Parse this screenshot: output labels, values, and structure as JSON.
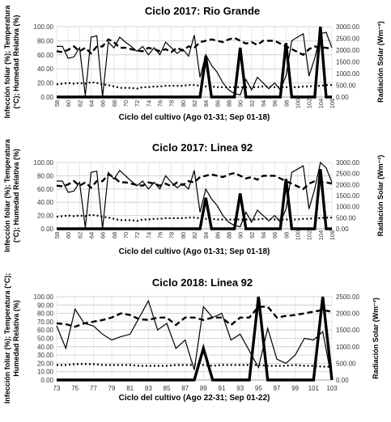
{
  "chart_data": [
    {
      "type": "line",
      "title": "Ciclo 2017: Rio Grande",
      "xlabel": "Ciclo del cultivo (Ago 01-31; Sep 01-18)",
      "ylabel_lines": [
        "Infección foliar (%); Temperatura",
        "(°C); Humedad Relativa (%)"
      ],
      "y2label": "Radiación Solar (Wm⁻²)",
      "xlim": [
        58,
        106
      ],
      "xticks": [
        58,
        60,
        62,
        64,
        66,
        68,
        70,
        72,
        74,
        76,
        78,
        80,
        82,
        84,
        86,
        88,
        90,
        92,
        94,
        96,
        98,
        100,
        102,
        104,
        106
      ],
      "yticks": [
        "0.00",
        "20.00",
        "40.00",
        "60.00",
        "80.00",
        "100.00"
      ],
      "y2ticks": [
        "0.00",
        "500.00",
        "1000.00",
        "1500.00",
        "2000.00",
        "2500.00",
        "3000.00"
      ],
      "ylim": [
        0,
        100
      ],
      "y2lim": [
        0,
        3000
      ],
      "grid": true,
      "x": [
        58,
        59,
        60,
        61,
        62,
        63,
        64,
        65,
        66,
        67,
        68,
        69,
        70,
        71,
        72,
        73,
        74,
        75,
        76,
        77,
        78,
        79,
        80,
        81,
        82,
        83,
        84,
        85,
        86,
        87,
        88,
        89,
        90,
        91,
        92,
        93,
        94,
        95,
        96,
        97,
        98,
        99,
        100,
        101,
        102,
        103,
        104,
        105,
        106
      ],
      "series": [
        {
          "style": "thin-solid",
          "axis": "left",
          "values": [
            72,
            72,
            55,
            57,
            70,
            2,
            85,
            87,
            0,
            78,
            70,
            85,
            78,
            72,
            65,
            72,
            60,
            70,
            60,
            78,
            70,
            62,
            68,
            58,
            88,
            28,
            60,
            45,
            35,
            20,
            10,
            5,
            3,
            25,
            10,
            28,
            20,
            12,
            20,
            10,
            30,
            80,
            85,
            90,
            30,
            55,
            90,
            92,
            70
          ]
        },
        {
          "style": "dashed",
          "axis": "left",
          "values": [
            65,
            64,
            67,
            72,
            65,
            70,
            62,
            72,
            72,
            82,
            78,
            70,
            70,
            68,
            66,
            65,
            70,
            68,
            65,
            68,
            64,
            70,
            66,
            72,
            70,
            78,
            80,
            82,
            80,
            78,
            82,
            84,
            80,
            76,
            78,
            74,
            80,
            80,
            80,
            76,
            72,
            68,
            64,
            60,
            68,
            72,
            70,
            70,
            68
          ]
        },
        {
          "style": "dotted",
          "axis": "left",
          "values": [
            18,
            19,
            20,
            19,
            20,
            19,
            21,
            20,
            18,
            17,
            15,
            13,
            13,
            13,
            12,
            14,
            14,
            15,
            15,
            16,
            16,
            16,
            16,
            17,
            17,
            16,
            15,
            15,
            14,
            14,
            14,
            14,
            14,
            14,
            14,
            14,
            15,
            15,
            14,
            14,
            14,
            14,
            14,
            15,
            15,
            16,
            16,
            17,
            17
          ]
        },
        {
          "style": "thick-solid",
          "axis": "right",
          "values": [
            0,
            0,
            0,
            0,
            0,
            0,
            0,
            0,
            0,
            0,
            0,
            0,
            0,
            0,
            0,
            0,
            0,
            0,
            0,
            0,
            0,
            0,
            0,
            0,
            0,
            0,
            1750,
            0,
            0,
            0,
            0,
            0,
            2100,
            0,
            0,
            0,
            0,
            0,
            0,
            0,
            2300,
            0,
            0,
            0,
            0,
            0,
            3000,
            0,
            0
          ]
        }
      ]
    },
    {
      "type": "line",
      "title": "Ciclo 2017: Linea 92",
      "xlabel": "Ciclo del cultivo (Ago 01-31; Sep 01-18)",
      "ylabel_lines": [
        "Infección foliar (%); Temperatura",
        "(°C); Humedad Relativa (%)"
      ],
      "y2label": "Radiación Solar (Wm⁻²)",
      "xlim": [
        58,
        106
      ],
      "xticks": [
        58,
        60,
        62,
        64,
        66,
        68,
        70,
        72,
        74,
        76,
        78,
        80,
        82,
        84,
        86,
        88,
        90,
        92,
        94,
        96,
        98,
        100,
        102,
        104,
        106
      ],
      "yticks": [
        "0.00",
        "20.00",
        "40.00",
        "60.00",
        "80.00",
        "100.00"
      ],
      "y2ticks": [
        "0.00",
        "500.00",
        "1000.00",
        "1500.00",
        "2000.00",
        "2500.00",
        "3000.00"
      ],
      "ylim": [
        0,
        100
      ],
      "y2lim": [
        0,
        3000
      ],
      "grid": true,
      "x": [
        58,
        59,
        60,
        61,
        62,
        63,
        64,
        65,
        66,
        67,
        68,
        69,
        70,
        71,
        72,
        73,
        74,
        75,
        76,
        77,
        78,
        79,
        80,
        81,
        82,
        83,
        84,
        85,
        86,
        87,
        88,
        89,
        90,
        91,
        92,
        93,
        94,
        95,
        96,
        97,
        98,
        99,
        100,
        101,
        102,
        103,
        104,
        105,
        106
      ],
      "series": [
        {
          "style": "thin-solid",
          "axis": "left",
          "values": [
            72,
            72,
            55,
            57,
            70,
            2,
            85,
            87,
            0,
            85,
            75,
            88,
            80,
            72,
            65,
            72,
            60,
            70,
            60,
            80,
            70,
            62,
            68,
            60,
            88,
            25,
            60,
            45,
            35,
            20,
            10,
            5,
            3,
            25,
            10,
            28,
            20,
            12,
            20,
            10,
            30,
            85,
            90,
            95,
            30,
            60,
            100,
            92,
            70
          ]
        },
        {
          "style": "dashed",
          "axis": "left",
          "values": [
            65,
            64,
            67,
            72,
            65,
            70,
            62,
            72,
            72,
            82,
            78,
            70,
            70,
            68,
            66,
            65,
            70,
            68,
            65,
            68,
            64,
            70,
            66,
            72,
            70,
            78,
            80,
            82,
            80,
            78,
            82,
            84,
            80,
            76,
            78,
            74,
            80,
            80,
            80,
            76,
            72,
            68,
            64,
            60,
            68,
            72,
            70,
            70,
            68
          ]
        },
        {
          "style": "dotted",
          "axis": "left",
          "values": [
            18,
            19,
            20,
            19,
            20,
            19,
            21,
            20,
            18,
            17,
            15,
            13,
            13,
            13,
            12,
            14,
            14,
            15,
            15,
            16,
            16,
            16,
            16,
            17,
            17,
            16,
            15,
            15,
            14,
            14,
            14,
            14,
            14,
            14,
            14,
            14,
            15,
            15,
            14,
            14,
            14,
            14,
            14,
            15,
            15,
            16,
            16,
            17,
            17
          ]
        },
        {
          "style": "thick-solid",
          "axis": "right",
          "values": [
            0,
            0,
            0,
            0,
            0,
            0,
            0,
            0,
            0,
            0,
            0,
            0,
            0,
            0,
            0,
            0,
            0,
            0,
            0,
            0,
            0,
            0,
            0,
            0,
            0,
            0,
            1400,
            0,
            0,
            0,
            0,
            0,
            1600,
            0,
            0,
            0,
            0,
            0,
            0,
            0,
            2250,
            0,
            0,
            0,
            0,
            0,
            2700,
            0,
            0
          ]
        }
      ]
    },
    {
      "type": "line",
      "title": "Ciclo 2018: Linea 92",
      "xlabel": "Ciclo del cultivo (Ago 22-31; Sep 01-22)",
      "ylabel_lines": [
        "Infección foliar (%); Temperatura (°C);",
        "Humedad Relativa (%)"
      ],
      "y2label": "Radiación Solar (Wm⁻²)",
      "xlim": [
        73,
        103
      ],
      "xticks": [
        73,
        75,
        77,
        79,
        81,
        83,
        85,
        87,
        89,
        91,
        93,
        95,
        97,
        99,
        101,
        103
      ],
      "yticks": [
        "0.00",
        "10.00",
        "20.00",
        "30.00",
        "40.00",
        "50.00",
        "60.00",
        "70.00",
        "80.00",
        "90.00",
        "100.00"
      ],
      "y2ticks": [
        "0.00",
        "500.00",
        "1000.00",
        "1500.00",
        "2000.00",
        "2500.00"
      ],
      "ylim": [
        0,
        100
      ],
      "y2lim": [
        0,
        2500
      ],
      "grid": true,
      "x": [
        73,
        74,
        75,
        76,
        77,
        78,
        79,
        80,
        81,
        82,
        83,
        84,
        85,
        86,
        87,
        88,
        89,
        90,
        91,
        92,
        93,
        94,
        95,
        96,
        97,
        98,
        99,
        100,
        101,
        102,
        103
      ],
      "series": [
        {
          "style": "thin-solid",
          "axis": "left",
          "values": [
            65,
            38,
            85,
            68,
            65,
            55,
            48,
            52,
            55,
            75,
            95,
            60,
            68,
            38,
            48,
            12,
            88,
            75,
            80,
            48,
            55,
            35,
            15,
            62,
            25,
            20,
            30,
            50,
            48,
            58,
            0
          ]
        },
        {
          "style": "dashed",
          "axis": "left",
          "values": [
            68,
            67,
            64,
            68,
            70,
            72,
            75,
            80,
            78,
            73,
            72,
            75,
            75,
            66,
            75,
            75,
            72,
            75,
            75,
            66,
            75,
            75,
            88,
            88,
            75,
            77,
            78,
            80,
            82,
            84,
            82
          ]
        },
        {
          "style": "dotted",
          "axis": "left",
          "values": [
            18,
            18,
            19,
            19,
            19,
            18,
            18,
            18,
            18,
            17,
            17,
            17,
            17,
            18,
            18,
            18,
            18,
            17,
            18,
            18,
            18,
            18,
            18,
            17,
            17,
            17,
            18,
            17,
            17,
            16,
            16
          ]
        },
        {
          "style": "thick-solid",
          "axis": "right",
          "values": [
            0,
            0,
            0,
            0,
            0,
            0,
            0,
            0,
            0,
            0,
            0,
            0,
            0,
            0,
            0,
            0,
            950,
            0,
            0,
            0,
            0,
            0,
            2500,
            0,
            0,
            0,
            0,
            0,
            0,
            2500,
            0
          ]
        }
      ]
    }
  ]
}
